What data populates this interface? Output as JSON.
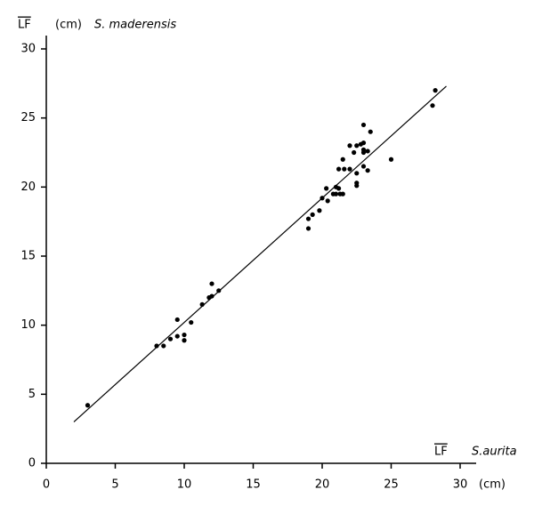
{
  "chart_data": {
    "type": "scatter",
    "y_label_var": "LF",
    "y_label_unit": "(cm)",
    "y_label_species": "S. maderensis",
    "x_label_var": "LF",
    "x_label_species": "S.aurita",
    "x_label_unit": "(cm)",
    "color": "#000000",
    "x": [
      3,
      8,
      8.5,
      9,
      9.5,
      9.5,
      10,
      10,
      10.5,
      11.3,
      11.8,
      12,
      12,
      12.5,
      19,
      19,
      19.3,
      19.8,
      20,
      20.3,
      20.4,
      20.8,
      21,
      21,
      21.2,
      21.3,
      21.5,
      21.2,
      21.5,
      21.6,
      22,
      22,
      22.3,
      22.5,
      22.5,
      22.5,
      22.5,
      22.8,
      23,
      23,
      23,
      23,
      23,
      23.3,
      23.3,
      23.5,
      25,
      28,
      28.2
    ],
    "values": [
      4.2,
      8.5,
      8.5,
      9,
      10.4,
      9.2,
      9.3,
      8.9,
      10.2,
      11.5,
      12,
      13,
      12.1,
      12.5,
      17.7,
      17,
      18,
      18.3,
      19.2,
      19.9,
      19,
      19.5,
      19.5,
      20,
      19.9,
      19.5,
      19.5,
      21.3,
      22,
      21.3,
      21.3,
      23,
      22.5,
      20.3,
      20.1,
      21,
      23,
      23.1,
      24.5,
      23.2,
      22.5,
      21.5,
      22.7,
      21.2,
      22.6,
      24,
      22,
      25.9,
      27
    ],
    "fit_line": {
      "x": [
        2,
        29
      ],
      "y": [
        3,
        27.3
      ]
    },
    "xlim": [
      0,
      30
    ],
    "ylim": [
      0,
      30
    ],
    "xticks": [
      0,
      5,
      10,
      15,
      20,
      25,
      30
    ],
    "yticks": [
      0,
      5,
      10,
      15,
      20,
      25,
      30
    ]
  }
}
